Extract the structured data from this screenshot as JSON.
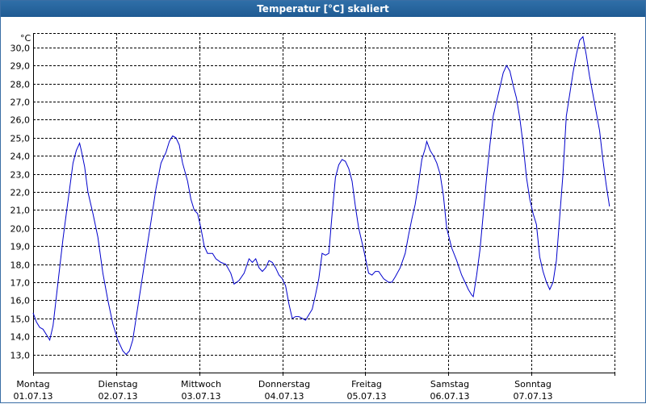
{
  "window": {
    "title": "Temperatur [°C] skaliert"
  },
  "chart_data": {
    "type": "line",
    "title": "Temperatur [°C] skaliert",
    "ylabel": "°C",
    "xlabel": "",
    "ylim": [
      12.0,
      30.8
    ],
    "yticks": [
      13.0,
      14.0,
      15.0,
      16.0,
      17.0,
      18.0,
      19.0,
      20.0,
      21.0,
      22.0,
      23.0,
      24.0,
      25.0,
      26.0,
      27.0,
      28.0,
      29.0,
      30.0
    ],
    "ytick_labels": [
      "13,0",
      "14,0",
      "15,0",
      "16,0",
      "17,0",
      "18,0",
      "19,0",
      "20,0",
      "21,0",
      "22,0",
      "23,0",
      "24,0",
      "25,0",
      "26,0",
      "27,0",
      "28,0",
      "29,0",
      "30,0"
    ],
    "xlim": [
      0,
      7.0
    ],
    "x_unit": "days from 01.07.13 00:00",
    "grid": true,
    "x_categories": [
      {
        "day": "Montag",
        "date": "01.07.13"
      },
      {
        "day": "Dienstag",
        "date": "02.07.13"
      },
      {
        "day": "Mittwoch",
        "date": "03.07.13"
      },
      {
        "day": "Donnerstag",
        "date": "04.07.13"
      },
      {
        "day": "Freitag",
        "date": "05.07.13"
      },
      {
        "day": "Samstag",
        "date": "06.07.13"
      },
      {
        "day": "Sonntag",
        "date": "07.07.13"
      }
    ],
    "series": [
      {
        "color": "#0000cc",
        "points": [
          [
            0.0,
            15.3
          ],
          [
            0.04,
            14.8
          ],
          [
            0.08,
            14.5
          ],
          [
            0.12,
            14.4
          ],
          [
            0.16,
            14.1
          ],
          [
            0.2,
            13.8
          ],
          [
            0.24,
            14.6
          ],
          [
            0.28,
            16.2
          ],
          [
            0.32,
            17.8
          ],
          [
            0.36,
            19.4
          ],
          [
            0.4,
            20.8
          ],
          [
            0.44,
            22.2
          ],
          [
            0.48,
            23.6
          ],
          [
            0.52,
            24.3
          ],
          [
            0.56,
            24.7
          ],
          [
            0.58,
            24.3
          ],
          [
            0.62,
            23.4
          ],
          [
            0.66,
            22.0
          ],
          [
            0.72,
            20.8
          ],
          [
            0.78,
            19.5
          ],
          [
            0.84,
            17.5
          ],
          [
            0.9,
            16.0
          ],
          [
            0.96,
            14.7
          ],
          [
            1.02,
            13.8
          ],
          [
            1.08,
            13.2
          ],
          [
            1.12,
            13.0
          ],
          [
            1.16,
            13.2
          ],
          [
            1.2,
            13.8
          ],
          [
            1.24,
            15.0
          ],
          [
            1.3,
            16.8
          ],
          [
            1.36,
            18.6
          ],
          [
            1.42,
            20.4
          ],
          [
            1.48,
            22.2
          ],
          [
            1.54,
            23.6
          ],
          [
            1.6,
            24.2
          ],
          [
            1.64,
            24.8
          ],
          [
            1.68,
            25.1
          ],
          [
            1.72,
            25.0
          ],
          [
            1.76,
            24.6
          ],
          [
            1.8,
            23.6
          ],
          [
            1.86,
            22.6
          ],
          [
            1.9,
            21.6
          ],
          [
            1.94,
            21.0
          ],
          [
            1.98,
            20.8
          ],
          [
            2.02,
            20.0
          ],
          [
            2.06,
            19.0
          ],
          [
            2.1,
            18.6
          ],
          [
            2.16,
            18.6
          ],
          [
            2.2,
            18.3
          ],
          [
            2.26,
            18.1
          ],
          [
            2.32,
            18.0
          ],
          [
            2.38,
            17.5
          ],
          [
            2.42,
            16.9
          ],
          [
            2.48,
            17.1
          ],
          [
            2.54,
            17.5
          ],
          [
            2.6,
            18.3
          ],
          [
            2.64,
            18.1
          ],
          [
            2.68,
            18.3
          ],
          [
            2.72,
            17.8
          ],
          [
            2.76,
            17.6
          ],
          [
            2.8,
            17.8
          ],
          [
            2.84,
            18.2
          ],
          [
            2.88,
            18.1
          ],
          [
            2.92,
            17.8
          ],
          [
            2.96,
            17.4
          ],
          [
            3.0,
            17.2
          ],
          [
            3.04,
            16.8
          ],
          [
            3.08,
            15.8
          ],
          [
            3.12,
            15.0
          ],
          [
            3.16,
            15.1
          ],
          [
            3.2,
            15.1
          ],
          [
            3.24,
            15.0
          ],
          [
            3.28,
            14.9
          ],
          [
            3.32,
            15.2
          ],
          [
            3.36,
            15.5
          ],
          [
            3.4,
            16.3
          ],
          [
            3.44,
            17.2
          ],
          [
            3.48,
            18.6
          ],
          [
            3.52,
            18.5
          ],
          [
            3.56,
            18.6
          ],
          [
            3.6,
            20.8
          ],
          [
            3.64,
            22.8
          ],
          [
            3.68,
            23.5
          ],
          [
            3.72,
            23.8
          ],
          [
            3.76,
            23.7
          ],
          [
            3.8,
            23.3
          ],
          [
            3.84,
            22.6
          ],
          [
            3.88,
            21.2
          ],
          [
            3.92,
            20.0
          ],
          [
            3.98,
            18.8
          ],
          [
            4.04,
            17.5
          ],
          [
            4.08,
            17.4
          ],
          [
            4.12,
            17.6
          ],
          [
            4.16,
            17.6
          ],
          [
            4.22,
            17.2
          ],
          [
            4.28,
            17.0
          ],
          [
            4.32,
            17.0
          ],
          [
            4.36,
            17.3
          ],
          [
            4.42,
            17.8
          ],
          [
            4.48,
            18.6
          ],
          [
            4.52,
            19.6
          ],
          [
            4.56,
            20.5
          ],
          [
            4.6,
            21.3
          ],
          [
            4.64,
            22.5
          ],
          [
            4.68,
            23.8
          ],
          [
            4.72,
            24.4
          ],
          [
            4.74,
            24.8
          ],
          [
            4.78,
            24.3
          ],
          [
            4.82,
            24.0
          ],
          [
            4.86,
            23.6
          ],
          [
            4.9,
            23.0
          ],
          [
            4.94,
            21.8
          ],
          [
            4.98,
            20.0
          ],
          [
            5.04,
            18.9
          ],
          [
            5.1,
            18.2
          ],
          [
            5.16,
            17.4
          ],
          [
            5.2,
            17.0
          ],
          [
            5.24,
            16.6
          ],
          [
            5.28,
            16.3
          ],
          [
            5.3,
            16.2
          ],
          [
            5.34,
            17.4
          ],
          [
            5.38,
            18.8
          ],
          [
            5.42,
            20.8
          ],
          [
            5.46,
            22.8
          ],
          [
            5.5,
            24.6
          ],
          [
            5.54,
            26.2
          ],
          [
            5.58,
            27.0
          ],
          [
            5.62,
            27.8
          ],
          [
            5.66,
            28.6
          ],
          [
            5.7,
            29.0
          ],
          [
            5.74,
            28.7
          ],
          [
            5.78,
            27.9
          ],
          [
            5.82,
            27.2
          ],
          [
            5.86,
            26.1
          ],
          [
            5.9,
            24.6
          ],
          [
            5.94,
            22.8
          ],
          [
            5.98,
            21.6
          ],
          [
            6.02,
            20.8
          ],
          [
            6.06,
            20.2
          ],
          [
            6.1,
            18.4
          ],
          [
            6.14,
            17.6
          ],
          [
            6.18,
            17.0
          ],
          [
            6.22,
            16.6
          ],
          [
            6.26,
            17.0
          ],
          [
            6.3,
            18.2
          ],
          [
            6.34,
            20.6
          ],
          [
            6.38,
            23.0
          ],
          [
            6.42,
            26.2
          ],
          [
            6.46,
            27.4
          ],
          [
            6.5,
            28.6
          ],
          [
            6.54,
            29.6
          ],
          [
            6.58,
            30.4
          ],
          [
            6.62,
            30.6
          ],
          [
            6.66,
            29.6
          ],
          [
            6.7,
            28.4
          ],
          [
            6.74,
            27.4
          ],
          [
            6.78,
            26.4
          ],
          [
            6.82,
            25.4
          ],
          [
            6.86,
            23.8
          ],
          [
            6.9,
            22.4
          ],
          [
            6.94,
            21.2
          ]
        ]
      }
    ]
  }
}
